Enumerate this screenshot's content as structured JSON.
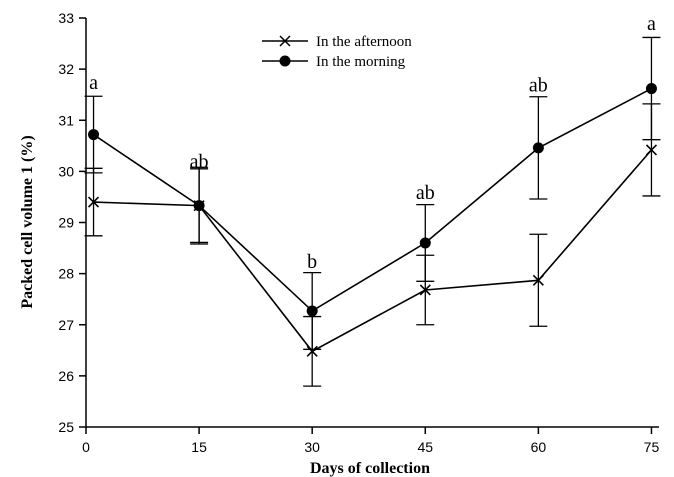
{
  "chart_data": {
    "type": "line",
    "xlabel": "Days of collection",
    "ylabel": "Packed cell volume 1 (%)",
    "xlim": [
      0,
      76
    ],
    "ylim": [
      25,
      33
    ],
    "x_ticks": [
      0,
      15,
      30,
      45,
      60,
      75
    ],
    "y_ticks": [
      25,
      26,
      27,
      28,
      29,
      30,
      31,
      32,
      33
    ],
    "grid": false,
    "legend_position": "top-center",
    "series": [
      {
        "name": "In the afternoon",
        "marker": "x",
        "color": "#000000",
        "x": [
          1,
          15,
          30,
          45,
          60,
          75
        ],
        "y": [
          29.4,
          29.33,
          26.48,
          27.68,
          27.87,
          30.42
        ],
        "error": [
          0.66,
          0.75,
          0.68,
          0.68,
          0.9,
          0.9
        ]
      },
      {
        "name": "In the morning",
        "marker": "circle",
        "color": "#000000",
        "x": [
          1,
          15,
          30,
          45,
          60,
          75
        ],
        "y": [
          30.72,
          29.33,
          27.27,
          28.6,
          30.46,
          31.62
        ],
        "error": [
          0.75,
          0.72,
          0.75,
          0.75,
          1.0,
          1.0
        ]
      }
    ],
    "annotations": [
      {
        "x": 1,
        "y": 31.75,
        "text": "a"
      },
      {
        "x": 15,
        "y": 30.2,
        "text": "ab"
      },
      {
        "x": 30,
        "y": 28.25,
        "text": "b"
      },
      {
        "x": 45,
        "y": 29.6,
        "text": "ab"
      },
      {
        "x": 60,
        "y": 31.7,
        "text": "ab"
      },
      {
        "x": 75,
        "y": 32.9,
        "text": "a"
      }
    ]
  }
}
